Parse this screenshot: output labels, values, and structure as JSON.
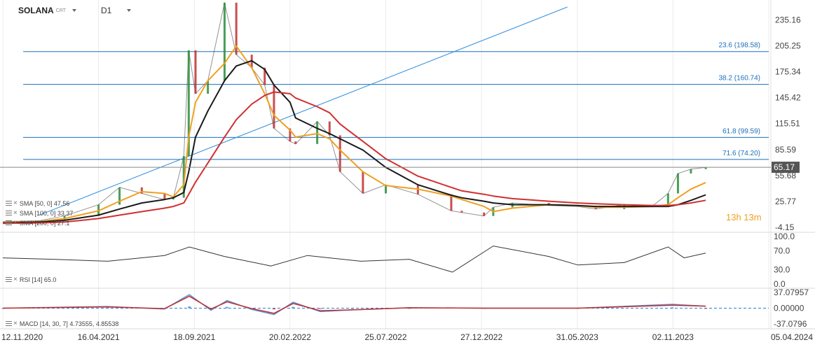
{
  "header": {
    "symbol": "SOLANA",
    "symbol_suffix": "CRT",
    "timeframe": "D1"
  },
  "colors": {
    "price_up": "#2a8c3a",
    "price_down": "#c03030",
    "sma50": "#f0a020",
    "sma100": "#1a1a1a",
    "sma200": "#d03030",
    "fib_line": "#1c6fb8",
    "trendline": "#2f8fdf",
    "price_badge": "#555555",
    "rsi_line": "#333333",
    "macd_line": "#5b8fd0",
    "macd_signal": "#c03030",
    "macd_hist": "#2a7fd0"
  },
  "indicators": {
    "sma50_label": "SMA [50, 0] 47.56",
    "sma100_label": "SMA [100, 0] 33.37",
    "sma200_label": "SMA [200, 0] 27.1",
    "rsi_label": "RSI [14] 65.0",
    "macd_label": "MACD [14, 30, 7] 4.73555, 4.85538"
  },
  "timer": "13h 13m",
  "chart_data": {
    "type": "line",
    "title": "",
    "last_price_label": "65.17",
    "x": [
      "2020-11-12",
      "2021-01-10",
      "2021-02-20",
      "2021-04-16",
      "2021-05-20",
      "2021-06-25",
      "2021-08-01",
      "2021-08-15",
      "2021-09-01",
      "2021-09-09",
      "2021-09-20",
      "2021-10-10",
      "2021-11-06",
      "2021-11-25",
      "2021-12-20",
      "2022-01-10",
      "2022-01-25",
      "2022-02-20",
      "2022-03-01",
      "2022-04-05",
      "2022-04-25",
      "2022-05-12",
      "2022-06-18",
      "2022-07-25",
      "2022-09-15",
      "2022-11-08",
      "2022-11-25",
      "2022-12-31",
      "2023-01-15",
      "2023-02-15",
      "2023-04-15",
      "2023-05-31",
      "2023-06-30",
      "2023-08-15",
      "2023-10-01",
      "2023-10-25",
      "2023-11-10",
      "2023-12-01",
      "2023-12-25"
    ],
    "series": [
      {
        "name": "",
        "values": [
          2.5,
          3.5,
          9,
          22,
          42,
          35,
          28,
          30,
          78,
          200,
          150,
          165,
          255,
          195,
          180,
          160,
          110,
          95,
          92,
          118,
          102,
          60,
          35,
          45,
          34,
          15,
          13,
          9,
          19,
          24,
          21,
          20,
          17,
          22,
          21,
          35,
          58,
          63,
          65
        ]
      },
      {
        "name": "SMA [50, 0]",
        "values": [
          1.5,
          2.5,
          6,
          15,
          26,
          37,
          35,
          31,
          45,
          100,
          140,
          165,
          185,
          205,
          180,
          150,
          125,
          108,
          100,
          104,
          98,
          85,
          60,
          44,
          40,
          32,
          28,
          20,
          14,
          18,
          22,
          21,
          19,
          19,
          20,
          22,
          30,
          40,
          47.56
        ]
      },
      {
        "name": "SMA [100, 0]",
        "values": [
          1,
          2,
          4,
          10,
          17,
          24,
          28,
          30,
          36,
          60,
          100,
          130,
          165,
          182,
          188,
          178,
          160,
          140,
          122,
          110,
          104,
          98,
          85,
          65,
          45,
          33,
          30,
          26,
          24,
          22,
          22,
          21,
          20,
          20,
          20,
          20,
          22,
          27,
          33.37
        ]
      },
      {
        "name": "SMA [200, 0]",
        "values": [
          0.5,
          1,
          2,
          6,
          10,
          14,
          18,
          20,
          24,
          34,
          48,
          70,
          100,
          120,
          138,
          148,
          152,
          150,
          145,
          135,
          128,
          115,
          95,
          75,
          55,
          42,
          38,
          34,
          32,
          29,
          26,
          24,
          23,
          22,
          21,
          21,
          22,
          24,
          27.1
        ]
      }
    ],
    "y_ticks": [
      235.16,
      205.25,
      175.34,
      145.42,
      115.51,
      85.59,
      55.68,
      25.77,
      -4.15
    ],
    "ylim": [
      -4.15,
      250
    ],
    "x_ticks": [
      "12.11.2020",
      "16.04.2021",
      "18.09.2021",
      "20.02.2022",
      "25.07.2022",
      "27.12.2022",
      "31.05.2023",
      "02.11.2023",
      "05.04.2024"
    ],
    "x_tick_dates": [
      "2020-11-12",
      "2021-04-16",
      "2021-09-18",
      "2022-02-20",
      "2022-07-25",
      "2022-12-27",
      "2023-05-31",
      "2023-11-02",
      "2024-04-05"
    ],
    "xlim": [
      "2020-11-12",
      "2024-04-05"
    ],
    "fibonacci": [
      {
        "label": "23.6 (198.58)",
        "value": 198.58
      },
      {
        "label": "38.2 (160.74)",
        "value": 160.74
      },
      {
        "label": "61.8 (99.59)",
        "value": 99.59
      },
      {
        "label": "71.6 (74.20)",
        "value": 74.2
      }
    ],
    "fib_start": "2020-12-15",
    "trendline": {
      "x": [
        "2021-01-10",
        "2023-05-15"
      ],
      "y": [
        10,
        250
      ]
    },
    "rsi": {
      "y_ticks": [
        100.0,
        70.0,
        30.0,
        0.0
      ],
      "ylim": [
        0,
        100
      ],
      "x": [
        "2020-11-12",
        "2021-02-01",
        "2021-05-01",
        "2021-08-01",
        "2021-09-10",
        "2021-11-06",
        "2022-01-20",
        "2022-03-20",
        "2022-06-15",
        "2022-09-01",
        "2022-11-10",
        "2023-01-15",
        "2023-04-15",
        "2023-06-01",
        "2023-08-15",
        "2023-10-25",
        "2023-11-20",
        "2023-12-25"
      ],
      "values": [
        55,
        52,
        48,
        60,
        78,
        58,
        38,
        60,
        48,
        52,
        25,
        80,
        58,
        40,
        45,
        78,
        55,
        65
      ]
    },
    "macd": {
      "y_ticks": [
        37.07957,
        0.0,
        -37.0796
      ],
      "ylim": [
        -37.0796,
        37.07957
      ],
      "x": [
        "2020-11-12",
        "2021-05-01",
        "2021-08-01",
        "2021-09-10",
        "2021-10-15",
        "2021-11-10",
        "2021-12-20",
        "2022-01-25",
        "2022-02-25",
        "2022-04-10",
        "2022-06-01",
        "2022-09-01",
        "2023-01-01",
        "2023-06-01",
        "2023-11-01",
        "2023-12-25"
      ],
      "macd": [
        0,
        4,
        -2,
        32,
        -5,
        18,
        -3,
        -15,
        14,
        -8,
        -4,
        1,
        0,
        0,
        9,
        4.73555
      ],
      "signal": [
        0,
        3,
        -1,
        28,
        -2,
        15,
        -1,
        -12,
        11,
        -6,
        -4,
        1,
        0,
        0,
        7,
        4.85538
      ]
    }
  }
}
